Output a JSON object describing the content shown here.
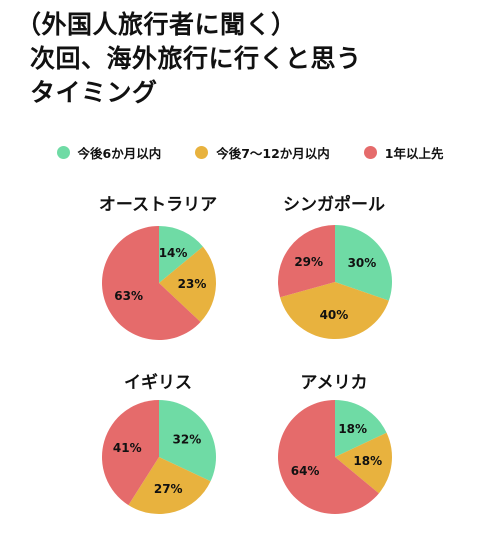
{
  "title_lines": [
    "（外国人旅行者に聞く）",
    "次回、海外旅行に行くと思う",
    "タイミング"
  ],
  "legend": [
    {
      "label": "今後6か月以内",
      "color": "#6fdba5"
    },
    {
      "label": "今後7〜12か月以内",
      "color": "#e8b23e"
    },
    {
      "label": "1年以上先",
      "color": "#e56b6b"
    }
  ],
  "chart_data": [
    {
      "type": "pie",
      "title": "オーストラリア",
      "labels": [
        "今後6か月以内",
        "今後7〜12か月以内",
        "1年以上先"
      ],
      "values": [
        14,
        23,
        63
      ],
      "value_labels": [
        "14%",
        "23%",
        "63%"
      ]
    },
    {
      "type": "pie",
      "title": "シンガポール",
      "labels": [
        "今後6か月以内",
        "今後7〜12か月以内",
        "1年以上先"
      ],
      "values": [
        30,
        40,
        29
      ],
      "value_labels": [
        "30%",
        "40%",
        "29%"
      ]
    },
    {
      "type": "pie",
      "title": "イギリス",
      "labels": [
        "今後6か月以内",
        "今後7〜12か月以内",
        "1年以上先"
      ],
      "values": [
        32,
        27,
        41
      ],
      "value_labels": [
        "32%",
        "27%",
        "41%"
      ]
    },
    {
      "type": "pie",
      "title": "アメリカ",
      "labels": [
        "今後6か月以内",
        "今後7〜12か月以内",
        "1年以上先"
      ],
      "values": [
        18,
        18,
        64
      ],
      "value_labels": [
        "18%",
        "18%",
        "64%"
      ]
    }
  ]
}
